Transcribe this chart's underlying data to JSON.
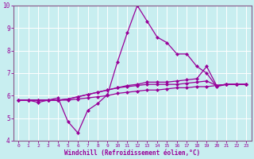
{
  "xlabel": "Windchill (Refroidissement éolien,°C)",
  "background_color": "#c8eef0",
  "grid_color": "#aadddd",
  "line_color": "#990099",
  "spine_color": "#885588",
  "xlim": [
    -0.5,
    23.5
  ],
  "ylim": [
    4,
    10
  ],
  "xticks": [
    0,
    1,
    2,
    3,
    4,
    5,
    6,
    7,
    8,
    9,
    10,
    11,
    12,
    13,
    14,
    15,
    16,
    17,
    18,
    19,
    20,
    21,
    22,
    23
  ],
  "yticks": [
    4,
    5,
    6,
    7,
    8,
    9,
    10
  ],
  "series": [
    [
      5.8,
      5.8,
      5.7,
      5.8,
      5.9,
      4.85,
      4.35,
      5.35,
      5.65,
      6.05,
      7.5,
      8.8,
      10.0,
      9.3,
      8.6,
      8.35,
      7.85,
      7.85,
      7.3,
      7.0,
      6.4,
      6.5,
      6.5,
      6.5
    ],
    [
      5.8,
      5.8,
      5.8,
      5.8,
      5.8,
      5.85,
      5.95,
      6.05,
      6.15,
      6.25,
      6.35,
      6.45,
      6.5,
      6.6,
      6.6,
      6.6,
      6.65,
      6.7,
      6.75,
      7.3,
      6.45,
      6.5,
      6.5,
      6.5
    ],
    [
      5.8,
      5.8,
      5.8,
      5.8,
      5.8,
      5.85,
      5.95,
      6.05,
      6.15,
      6.25,
      6.35,
      6.4,
      6.45,
      6.5,
      6.5,
      6.5,
      6.5,
      6.55,
      6.6,
      6.65,
      6.45,
      6.5,
      6.5,
      6.5
    ],
    [
      5.8,
      5.8,
      5.8,
      5.8,
      5.8,
      5.8,
      5.85,
      5.9,
      5.95,
      6.0,
      6.1,
      6.15,
      6.2,
      6.25,
      6.25,
      6.3,
      6.35,
      6.35,
      6.4,
      6.4,
      6.45,
      6.5,
      6.5,
      6.5
    ]
  ],
  "markersize": 2.5,
  "linewidth": 0.9
}
